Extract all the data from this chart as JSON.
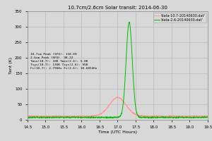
{
  "title": "10.7cm/2.6cm Solar transit: 2014-06-30",
  "xlabel": "Time (UTC Hours)",
  "ylabel": "Tant (K)",
  "xlim": [
    14.5,
    19.5
  ],
  "ylim": [
    0,
    350
  ],
  "xticks": [
    14.5,
    15.0,
    15.5,
    16.0,
    16.5,
    17.0,
    17.5,
    18.0,
    18.5,
    19.0,
    19.5
  ],
  "yticks": [
    0,
    50,
    100,
    150,
    200,
    250,
    300,
    350
  ],
  "legend_labels": [
    "'data-10.7-20140630.dat'",
    "'data-2.6-20140630.dat'"
  ],
  "color_107": "#ff9999",
  "color_26": "#00bb00",
  "annotation": "10.7cm Peak (SFU): 118.69\n2.6cm Peak (SFU)  38.22\nTmin(10.7): 10K Tmin(2.6): 5.0K\nTsys(10.7): 135K Tsys(2.6): 95K\nFc(10.7): 2.79GHz Fc(2.6): 10.685GHz",
  "baseline_107": 12.0,
  "baseline_26": 8.0,
  "peak_107_x": 17.0,
  "peak_107_y": 60.0,
  "peak_26_x": 17.32,
  "peak_26_y": 307.0,
  "sigma_107": 0.23,
  "sigma_26": 0.085,
  "bg_color": "#d8d8d8",
  "grid_color": "#bbbbbb"
}
